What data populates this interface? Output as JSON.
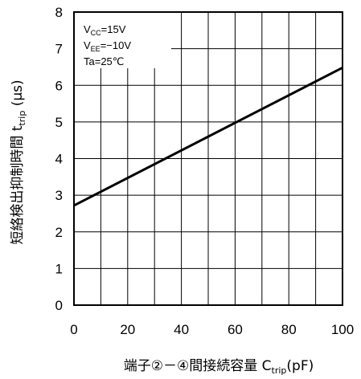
{
  "chart_data": {
    "type": "line",
    "x": [
      0,
      100
    ],
    "series": [
      {
        "values": [
          2.72,
          6.48
        ]
      }
    ],
    "xlim": [
      0,
      100
    ],
    "ylim": [
      0,
      8
    ],
    "x_ticks": [
      "0",
      "20",
      "40",
      "60",
      "80",
      "100"
    ],
    "y_ticks": [
      "0",
      "1",
      "2",
      "3",
      "4",
      "5",
      "6",
      "7",
      "8"
    ],
    "xlabel": {
      "main": "端子②－④間接続容量 C",
      "sub": "trip",
      "tail": "(pF)"
    },
    "ylabel": {
      "main": "短絡検出抑制時間 t",
      "sub": "trip",
      "tail": " (μs)"
    },
    "annotations": [
      {
        "main": "V",
        "sub": "CC",
        "tail": "=15V"
      },
      {
        "main": "V",
        "sub": "EE",
        "tail": "=−10V"
      },
      {
        "main": "Ta=25℃",
        "sub": "",
        "tail": ""
      }
    ],
    "grid": true,
    "colors": {
      "line": "#000000",
      "grid": "#000000"
    }
  }
}
